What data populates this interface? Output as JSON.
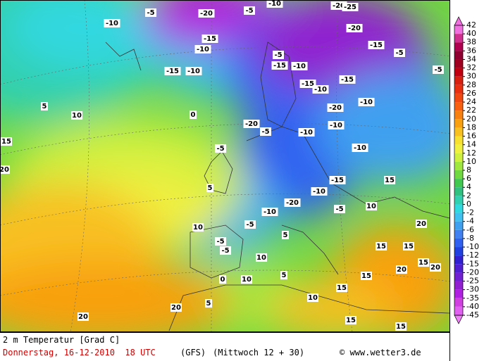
{
  "map": {
    "labels": [
      "-10",
      "-5",
      "-20",
      "-5",
      "-10",
      "-20",
      "-25",
      "-20",
      "-15",
      "-10",
      "-15",
      "-10",
      "-5",
      "-15",
      "-10",
      "-15",
      "-10",
      "-15",
      "-20",
      "-10",
      "-15",
      "-5",
      "-5",
      "-10",
      "-10",
      "-5",
      "-20",
      "-10",
      "-5",
      "-15",
      "-10",
      "-5",
      "-20",
      "-10",
      "-5",
      "-5",
      "-5",
      "0",
      "10",
      "5",
      "15",
      "20",
      "5",
      "10",
      "10",
      "5",
      "10",
      "15",
      "15",
      "20",
      "15",
      "20",
      "15",
      "10",
      "15",
      "20",
      "10",
      "15",
      "15",
      "20",
      "20",
      "5",
      "0",
      "5",
      "15"
    ]
  },
  "legend": {
    "levels": [
      {
        "label": 42,
        "color": "#f070e0"
      },
      {
        "label": 40,
        "color": "#d03090"
      },
      {
        "label": 38,
        "color": "#b00050"
      },
      {
        "label": 36,
        "color": "#900030"
      },
      {
        "label": 34,
        "color": "#a00020"
      },
      {
        "label": 32,
        "color": "#c00010"
      },
      {
        "label": 30,
        "color": "#d82010"
      },
      {
        "label": 28,
        "color": "#e83010"
      },
      {
        "label": 26,
        "color": "#f04810"
      },
      {
        "label": 24,
        "color": "#f86010"
      },
      {
        "label": 22,
        "color": "#f88010"
      },
      {
        "label": 20,
        "color": "#f8a010"
      },
      {
        "label": 18,
        "color": "#f8c020"
      },
      {
        "label": 16,
        "color": "#f8e030"
      },
      {
        "label": 14,
        "color": "#f0f040"
      },
      {
        "label": 12,
        "color": "#d0f040"
      },
      {
        "label": 10,
        "color": "#a0e840"
      },
      {
        "label": 8,
        "color": "#70d840"
      },
      {
        "label": 6,
        "color": "#40c850"
      },
      {
        "label": 4,
        "color": "#30c080"
      },
      {
        "label": 2,
        "color": "#30d0b0"
      },
      {
        "label": 0,
        "color": "#30d8e0"
      },
      {
        "label": -2,
        "color": "#40c0f0"
      },
      {
        "label": -4,
        "color": "#40a0f0"
      },
      {
        "label": -6,
        "color": "#4080f0"
      },
      {
        "label": -8,
        "color": "#3060f0"
      },
      {
        "label": -10,
        "color": "#2040e0"
      },
      {
        "label": -12,
        "color": "#3020d0"
      },
      {
        "label": -15,
        "color": "#5020d0"
      },
      {
        "label": -20,
        "color": "#7020d0"
      },
      {
        "label": -25,
        "color": "#9020d0"
      },
      {
        "label": -30,
        "color": "#b020e0"
      },
      {
        "label": -35,
        "color": "#d040e0"
      },
      {
        "label": -40,
        "color": "#e060f0"
      },
      {
        "label": -45,
        "color": "#f080f8"
      }
    ]
  },
  "footer": {
    "variable": "2 m Temperatur [Grad C]",
    "date": "Donnerstag, 16-12-2010  18 UTC",
    "model": "(GFS)",
    "run": "(Mittwoch 12 + 30)",
    "credit": "© www.wetter3.de"
  }
}
